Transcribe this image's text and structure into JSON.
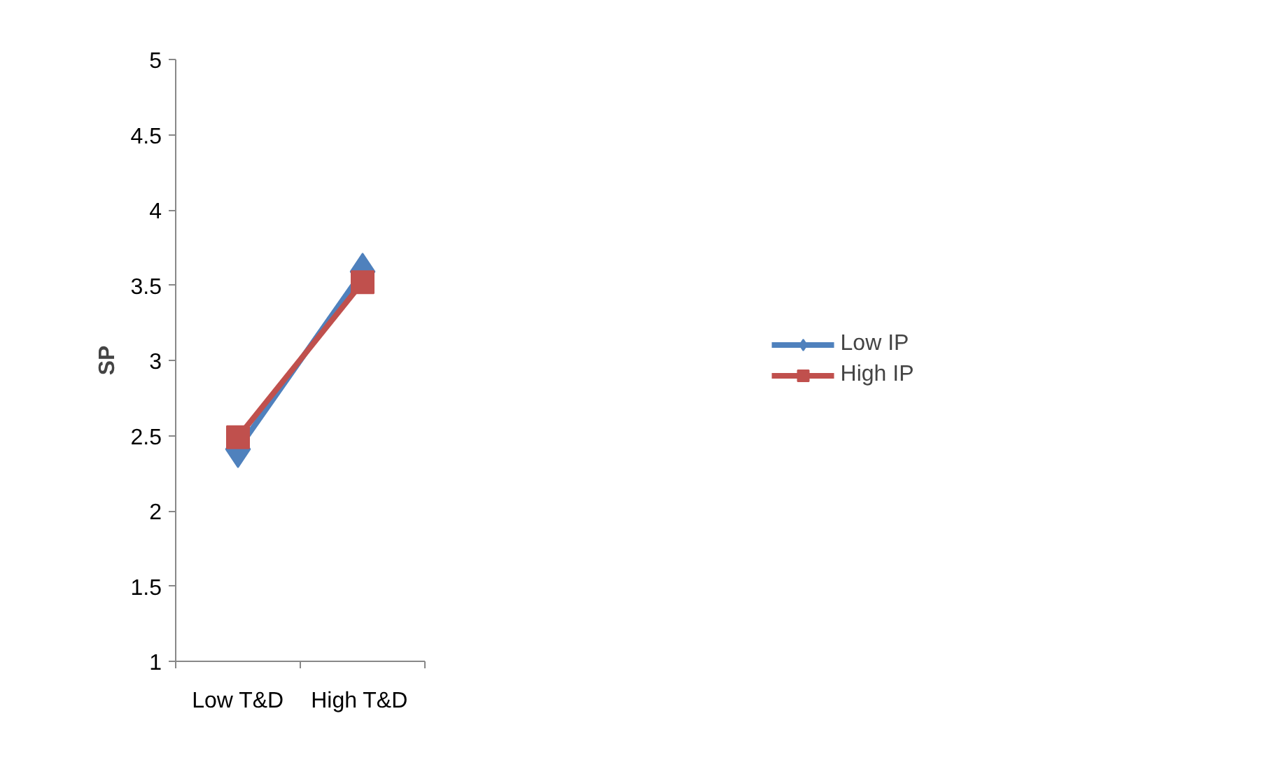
{
  "chart_data": {
    "type": "line",
    "ylabel": "SP",
    "categories": [
      "Low T&D",
      "High  T&D"
    ],
    "series": [
      {
        "name": "Low IP",
        "color": "#4f81bd",
        "marker": "diamond",
        "values": [
          2.41,
          3.59
        ]
      },
      {
        "name": "High IP",
        "color": "#c0504d",
        "marker": "square",
        "values": [
          2.49,
          3.52
        ]
      }
    ],
    "ylim": [
      1,
      5
    ],
    "yticks": [
      1,
      1.5,
      2,
      2.5,
      3,
      3.5,
      4,
      4.5,
      5
    ],
    "grid": false,
    "legend": "right"
  }
}
